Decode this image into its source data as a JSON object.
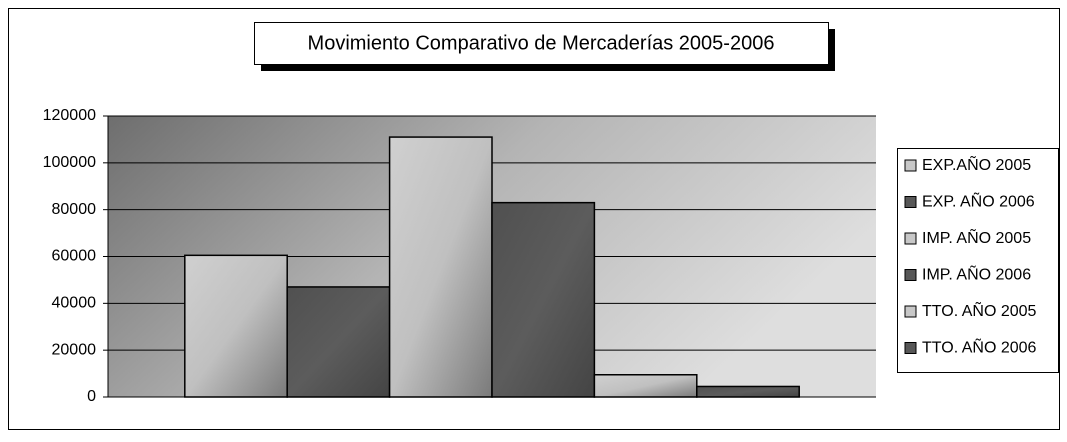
{
  "chart_data": {
    "type": "bar",
    "title": "Movimiento Comparativo de Mercaderías 2005-2006",
    "categories": [
      null
    ],
    "series": [
      {
        "name": "EXP.AÑO 2005",
        "color": "#c8c8c8",
        "values": [
          60500
        ]
      },
      {
        "name": "EXP. AÑO 2006",
        "color": "#575757",
        "values": [
          47000
        ]
      },
      {
        "name": "IMP. AÑO 2005",
        "color": "#c8c8c8",
        "values": [
          111000
        ]
      },
      {
        "name": "IMP. AÑO 2006",
        "color": "#575757",
        "values": [
          83000
        ]
      },
      {
        "name": "TTO. AÑO 2005",
        "color": "#c8c8c8",
        "values": [
          9500
        ]
      },
      {
        "name": "TTO. AÑO 2006",
        "color": "#575757",
        "values": [
          4500
        ]
      }
    ],
    "ylim": [
      0,
      120000
    ],
    "yticks": [
      0,
      20000,
      40000,
      60000,
      80000,
      100000,
      120000
    ],
    "grid": true,
    "legend": "right"
  }
}
